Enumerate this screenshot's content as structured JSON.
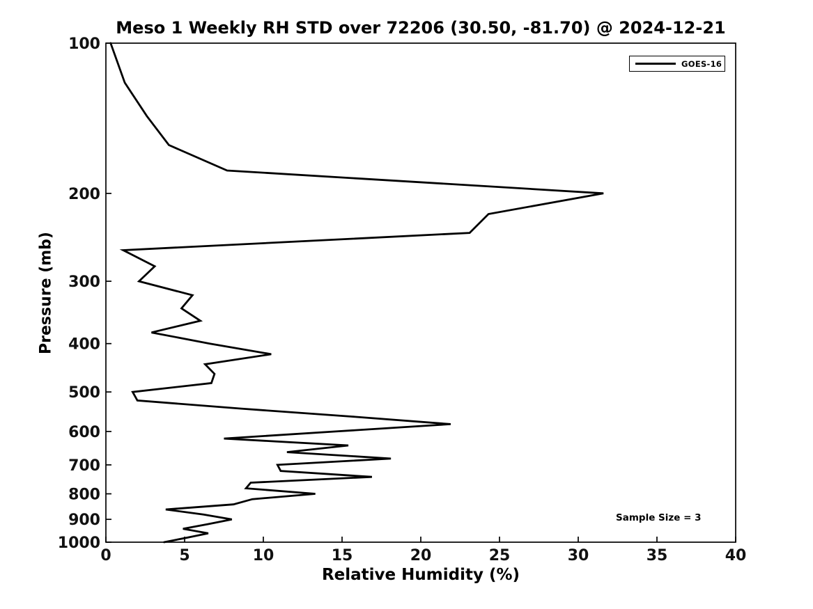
{
  "title": "Meso 1 Weekly RH STD over 72206 (30.50, -81.70) @ 2024-12-21",
  "annotation": "Sample Size = 3",
  "legend": {
    "entries": [
      {
        "label": "GOES-16",
        "color": "#000000"
      }
    ]
  },
  "chart_data": {
    "type": "line",
    "title": "Meso 1 Weekly RH STD over 72206 (30.50, -81.70) @ 2024-12-21",
    "xlabel": "Relative Humidity (%)",
    "ylabel": "Pressure (mb)",
    "xlim": [
      0,
      40
    ],
    "ylim": [
      100,
      1000
    ],
    "x_scale": "linear",
    "y_scale": "log",
    "y_inverted": true,
    "grid": false,
    "legend_position": "upper right",
    "x_ticks": [
      0,
      5,
      10,
      15,
      20,
      25,
      30,
      35,
      40
    ],
    "y_ticks": [
      100,
      200,
      300,
      400,
      500,
      600,
      700,
      800,
      900,
      1000
    ],
    "annotations": [
      "Sample Size = 3"
    ],
    "line_color": "#000000",
    "background_color": "#ffffff",
    "series": [
      {
        "name": "GOES-16",
        "color": "#000000",
        "y_pressure_mb": [
          100,
          120,
          140,
          160,
          180,
          200,
          220,
          240,
          260,
          280,
          300,
          320,
          340,
          360,
          380,
          400,
          420,
          440,
          460,
          480,
          500,
          520,
          540,
          560,
          580,
          600,
          620,
          640,
          660,
          680,
          700,
          720,
          740,
          760,
          780,
          800,
          820,
          840,
          860,
          880,
          900,
          920,
          940,
          960,
          980,
          1000
        ],
        "x_rh_percent": [
          0.3,
          1.2,
          2.6,
          4.0,
          7.7,
          31.6,
          24.3,
          23.1,
          1.1,
          3.1,
          2.1,
          5.5,
          4.8,
          6.0,
          2.9,
          6.6,
          10.5,
          6.3,
          6.9,
          6.7,
          1.7,
          2.0,
          8.6,
          15.6,
          21.9,
          14.6,
          7.5,
          15.4,
          11.5,
          18.1,
          10.9,
          11.1,
          16.9,
          9.2,
          8.9,
          13.3,
          9.3,
          8.1,
          3.8,
          6.2,
          8.0,
          6.5,
          4.9,
          6.5,
          5.1,
          3.7
        ]
      }
    ]
  }
}
